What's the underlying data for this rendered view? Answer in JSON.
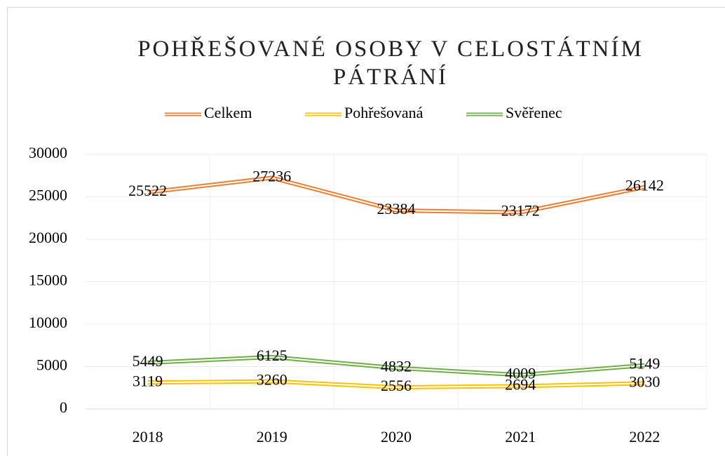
{
  "chart_data": {
    "type": "line",
    "title": "POHŘEŠOVANÉ OSOBY V CELOSTÁTNÍM PÁTRÁNÍ",
    "categories": [
      "2018",
      "2019",
      "2020",
      "2021",
      "2022"
    ],
    "series": [
      {
        "name": "Celkem",
        "color": "#ed7d31",
        "values": [
          25522,
          27236,
          23384,
          23172,
          26142
        ]
      },
      {
        "name": "Pohřešovaná",
        "color": "#ffc000",
        "values": [
          3119,
          3260,
          2556,
          2694,
          3030
        ]
      },
      {
        "name": "Svěřenec",
        "color": "#70ad47",
        "values": [
          5449,
          6125,
          4832,
          4009,
          5149
        ]
      }
    ],
    "ylim": [
      0,
      30000
    ],
    "yticks": [
      0,
      5000,
      10000,
      15000,
      20000,
      25000,
      30000
    ],
    "grid": true,
    "legend": "top"
  }
}
